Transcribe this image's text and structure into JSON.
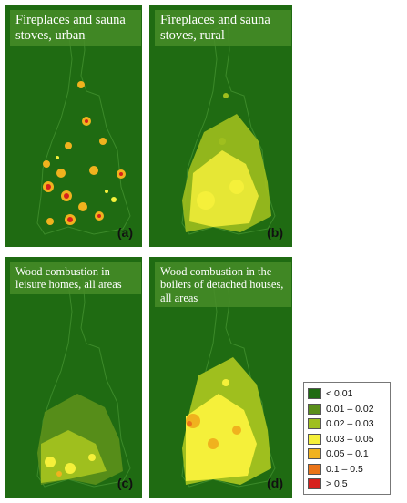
{
  "panels": [
    {
      "id": "a",
      "title": "Fireplaces and sauna stoves, urban",
      "label": "(a)"
    },
    {
      "id": "b",
      "title": "Fireplaces and sauna stoves, rural",
      "label": "(b)"
    },
    {
      "id": "c",
      "title": "Wood combustion in leisure homes, all areas",
      "label": "(c)"
    },
    {
      "id": "d",
      "title": "Wood combustion in the boilers of detached houses, all areas",
      "label": "(d)"
    }
  ],
  "legend": {
    "items": [
      {
        "label": "< 0.01",
        "color": "#1f6b12"
      },
      {
        "label": "0.01 – 0.02",
        "color": "#5a8f1a"
      },
      {
        "label": "0.02 – 0.03",
        "color": "#9fbf1e"
      },
      {
        "label": "0.03 – 0.05",
        "color": "#f5f03a"
      },
      {
        "label": "0.05 – 0.1",
        "color": "#f0b21e"
      },
      {
        "label": "0.1 – 0.5",
        "color": "#ea7418"
      },
      {
        "label": "> 0.5",
        "color": "#d6201c"
      }
    ]
  },
  "colors": {
    "background": "#1f6b12",
    "border": "#3c8a2a"
  }
}
